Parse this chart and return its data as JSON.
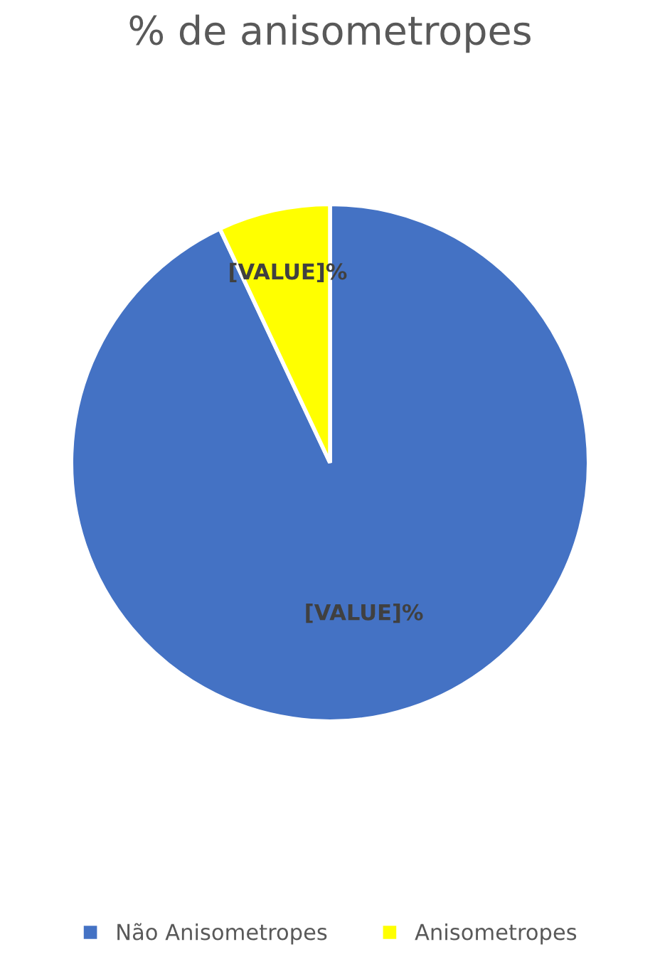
{
  "chart_data": {
    "type": "pie",
    "title": "% de anisometropes",
    "categories": [
      "Não Anisometropes",
      "Anisometropes"
    ],
    "values": [
      93,
      7
    ],
    "colors": [
      "#4472c4",
      "#ffff00"
    ],
    "value_labels": [
      "[VALUE]%",
      "[VALUE]%"
    ],
    "legend": "bottom"
  }
}
